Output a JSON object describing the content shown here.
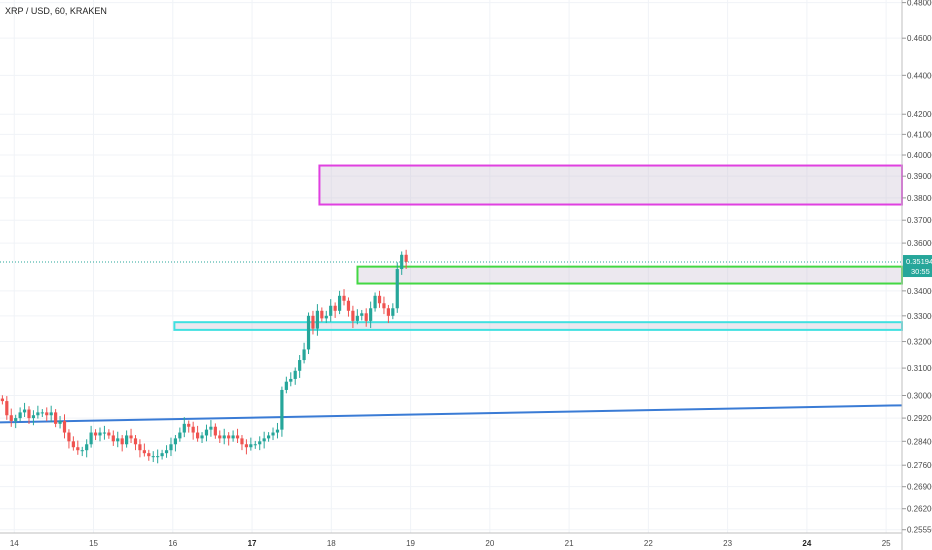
{
  "title": "XRP / USD, 60, KRAKEN",
  "colors": {
    "up": "#26a69a",
    "down": "#ef5350",
    "trendline": "#3a7bd5",
    "zone_magenta": "#e040e0",
    "zone_green": "#43d843",
    "zone_cyan": "#40e0e0",
    "price_badge": "#26a69a"
  },
  "price_badge": {
    "price": "0.35194",
    "timer": "30:55"
  },
  "chart_data": {
    "type": "candlestick",
    "y_scale": "log",
    "y_ticks": [
      "0.48000",
      "0.46000",
      "0.44000",
      "0.42000",
      "0.41000",
      "0.40000",
      "0.39000",
      "0.38000",
      "0.37000",
      "0.36000",
      "0.34000",
      "0.33000",
      "0.32000",
      "0.31000",
      "0.30000",
      "0.29200",
      "0.28400",
      "0.27600",
      "0.26900",
      "0.26200",
      "0.25550"
    ],
    "x_ticks": [
      {
        "label": "14",
        "day": 14,
        "bold": false
      },
      {
        "label": "15",
        "day": 15,
        "bold": false
      },
      {
        "label": "16",
        "day": 16,
        "bold": false
      },
      {
        "label": "17",
        "day": 17,
        "bold": true
      },
      {
        "label": "18",
        "day": 18,
        "bold": false
      },
      {
        "label": "19",
        "day": 19,
        "bold": false
      },
      {
        "label": "20",
        "day": 20,
        "bold": false
      },
      {
        "label": "21",
        "day": 21,
        "bold": false
      },
      {
        "label": "22",
        "day": 22,
        "bold": false
      },
      {
        "label": "23",
        "day": 23,
        "bold": false
      },
      {
        "label": "24",
        "day": 24,
        "bold": true
      },
      {
        "label": "25",
        "day": 25,
        "bold": false
      }
    ],
    "x_range_days": [
      13.82,
      25.2
    ],
    "y_range": [
      0.2545,
      0.4815
    ],
    "last_price": 0.35194,
    "candles_hourly_close": [
      0.298,
      0.293,
      0.291,
      0.292,
      0.294,
      0.295,
      0.292,
      0.293,
      0.294,
      0.294,
      0.293,
      0.294,
      0.29,
      0.291,
      0.287,
      0.284,
      0.282,
      0.281,
      0.281,
      0.283,
      0.287,
      0.286,
      0.287,
      0.287,
      0.286,
      0.284,
      0.285,
      0.283,
      0.286,
      0.285,
      0.283,
      0.281,
      0.28,
      0.279,
      0.279,
      0.279,
      0.28,
      0.281,
      0.283,
      0.285,
      0.287,
      0.29,
      0.289,
      0.287,
      0.285,
      0.286,
      0.288,
      0.289,
      0.286,
      0.285,
      0.286,
      0.285,
      0.286,
      0.285,
      0.283,
      0.282,
      0.283,
      0.283,
      0.284,
      0.285,
      0.286,
      0.287,
      0.288,
      0.302,
      0.305,
      0.306,
      0.309,
      0.313,
      0.317,
      0.33,
      0.325,
      0.332,
      0.329,
      0.33,
      0.334,
      0.332,
      0.338,
      0.336,
      0.332,
      0.328,
      0.33,
      0.331,
      0.328,
      0.333,
      0.338,
      0.335,
      0.333,
      0.33,
      0.333,
      0.349,
      0.355,
      0.352
    ],
    "zones": [
      {
        "name": "magenta-zone",
        "from_day": 17.85,
        "to_day": 25.2,
        "low": 0.377,
        "high": 0.395,
        "color": "#e040e0"
      },
      {
        "name": "green-zone",
        "from_day": 18.33,
        "to_day": 25.2,
        "low": 0.343,
        "high": 0.35,
        "color": "#43d843"
      },
      {
        "name": "cyan-zone",
        "from_day": 16.02,
        "to_day": 25.2,
        "low": 0.3245,
        "high": 0.3275,
        "color": "#40e0e0"
      }
    ],
    "trendline": {
      "from": {
        "day": 13.82,
        "price": 0.2905
      },
      "to": {
        "day": 25.2,
        "price": 0.2965
      }
    },
    "grid": true
  }
}
